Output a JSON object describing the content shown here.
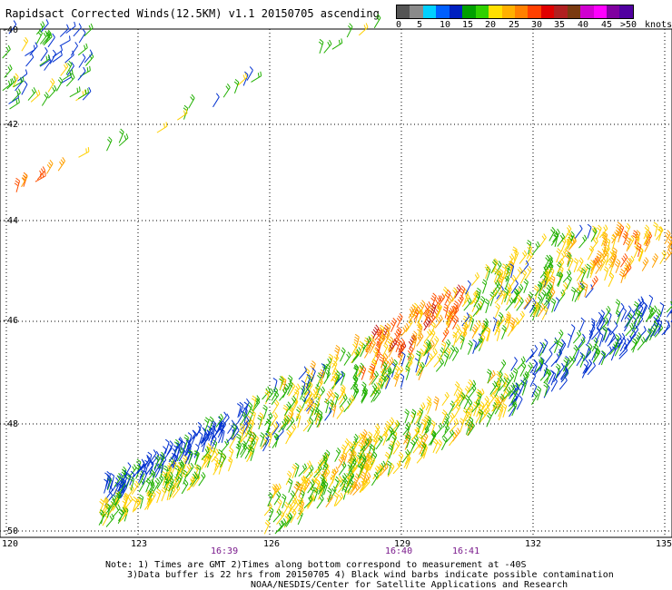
{
  "title": "Rapidsact Corrected Winds(12.5KM) v1.1 20150705 ascending",
  "legend": {
    "unit": "knots",
    "labels": [
      "0",
      "5",
      "10",
      "15",
      "20",
      "25",
      "30",
      "35",
      "40",
      "45",
      ">50"
    ],
    "colors": [
      "#555555",
      "#8a8a8a",
      "#00d0ff",
      "#0060ff",
      "#0020c0",
      "#00a000",
      "#30d000",
      "#ffe000",
      "#ffb000",
      "#ff8000",
      "#ff4000",
      "#e00000",
      "#b02020",
      "#7a3a10",
      "#d000d0",
      "#ff00ff",
      "#8000a0",
      "#5000a0"
    ]
  },
  "axes": {
    "lat_labels": [
      "-40",
      "-42",
      "-44",
      "-46",
      "-48",
      "-50"
    ],
    "lon_labels": [
      "120",
      "123",
      "126",
      "129",
      "132",
      "135"
    ],
    "lat_range": [
      -50,
      -40
    ],
    "lon_range": [
      120,
      135
    ]
  },
  "times": [
    "16:39",
    "16:40",
    "16:41"
  ],
  "notes": {
    "line1": "Note: 1) Times are GMT 2)Times along bottom correspond to measurement at -40S",
    "line2": "3)Data buffer is 22 hrs from 20150705 4) Black wind barbs indicate possible contamination",
    "line3": "NOAA/NESDIS/Center for Satellite Applications and Research"
  },
  "swaths": [
    {
      "name": "upper-left-edge",
      "speed_range": [
        10,
        25
      ]
    },
    {
      "name": "diagonal-track",
      "speed_range": [
        15,
        35
      ]
    },
    {
      "name": "lower-main-swath",
      "speed_range": [
        10,
        40
      ]
    },
    {
      "name": "lower-second-swath",
      "speed_range": [
        10,
        30
      ]
    }
  ]
}
